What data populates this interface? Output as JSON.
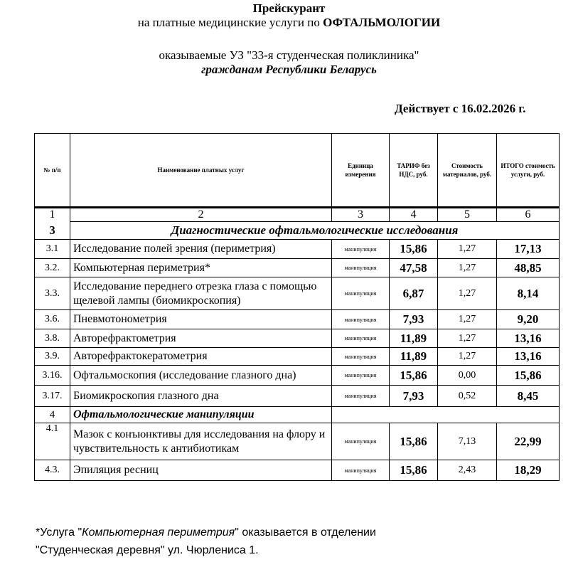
{
  "header": {
    "title": "Прейскурант",
    "subtitle_prefix": "на платные медицинские услуги по ",
    "subtitle_bold": "ОФТАЛЬМОЛОГИИ",
    "provider": "оказываемые УЗ \"33-я студенческая поликлиника\"",
    "audience": "гражданам Республики Беларусь",
    "effective": "Действует с 16.02.2026 г."
  },
  "table": {
    "columns": [
      "№ п/п",
      "Наименование платных услуг",
      "Единица измерения",
      "ТАРИФ без НДС, руб.",
      "Стоимость материалов, руб.",
      "ИТОГО стоимость услуги, руб."
    ],
    "column_numbers": [
      "1",
      "2",
      "3",
      "4",
      "5",
      "6"
    ],
    "sections": [
      {
        "num": "3",
        "title": "Диагностические офтальмологические исследования",
        "rows": [
          {
            "n": "3.1",
            "name": "Исследование полей зрения (периметрия)",
            "unit": "манипуляция",
            "tariff": "15,86",
            "materials": "1,27",
            "total": "17,13"
          },
          {
            "n": "3.2.",
            "name": "Компьютерная периметрия*",
            "unit": "манипуляция",
            "tariff": "47,58",
            "materials": "1,27",
            "total": "48,85"
          },
          {
            "n": "3.3.",
            "name": "Исследование переднего отрезка глаза с помощью щелевой лампы (биомикроскопия)",
            "unit": "манипуляция",
            "tariff": "6,87",
            "materials": "1,27",
            "total": "8,14"
          },
          {
            "n": "3.6.",
            "name": "Пневмотонометрия",
            "unit": "манипуляция",
            "tariff": "7,93",
            "materials": "1,27",
            "total": "9,20"
          },
          {
            "n": "3.8.",
            "name": "Авторефрактометрия",
            "unit": "манипуляция",
            "tariff": "11,89",
            "materials": "1,27",
            "total": "13,16"
          },
          {
            "n": "3.9.",
            "name": "Авторефрактокератометрия",
            "unit": "манипуляция",
            "tariff": "11,89",
            "materials": "1,27",
            "total": "13,16"
          },
          {
            "n": "3.16.",
            "name": "Офтальмоскопия (исследование глазного дна)",
            "unit": "манипуляция",
            "tariff": "15,86",
            "materials": "0,00",
            "total": "15,86"
          },
          {
            "n": "3.17.",
            "name": "Биомикроскопия глазного дна",
            "unit": "манипуляция",
            "tariff": "7,93",
            "materials": "0,52",
            "total": "8,45"
          }
        ]
      },
      {
        "num": "4",
        "title": "Офтальмологические манипуляции",
        "rows": [
          {
            "n": "4.1",
            "name": "Мазок с конъюнктивы для исследования на флору и чувствительность к антибиотикам",
            "unit": "манипуляция",
            "tariff": "15,86",
            "materials": "7,13",
            "total": "22,99"
          },
          {
            "n": "4.3.",
            "name": "Эпиляция ресниц",
            "unit": "манипуляция",
            "tariff": "15,86",
            "materials": "2,43",
            "total": "18,29"
          }
        ]
      }
    ]
  },
  "footnote": {
    "line1_a": "*Услуга \"",
    "line1_italic": "Компьютерная периметрия",
    "line1_b": "\" оказывается в отделении",
    "line2": "\"Студенческая деревня\" ул. Чюрлениса 1."
  }
}
